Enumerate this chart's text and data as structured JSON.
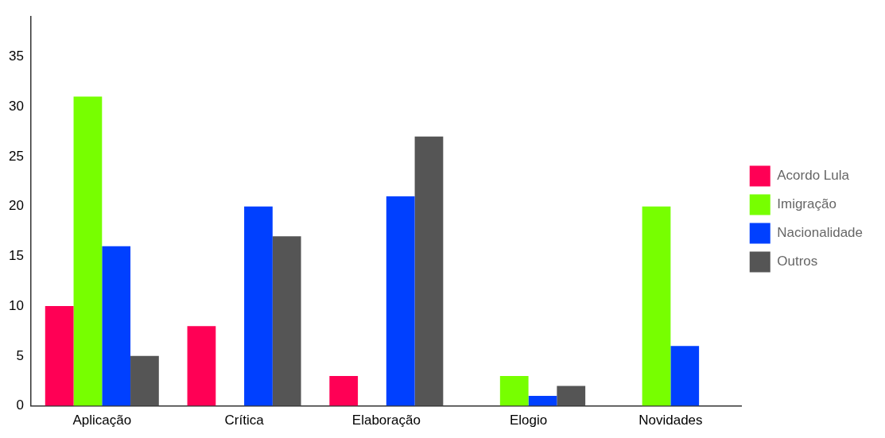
{
  "chart_data": {
    "type": "bar",
    "categories": [
      "Aplicação",
      "Crítica",
      "Elaboração",
      "Elogio",
      "Novidades"
    ],
    "series": [
      {
        "name": "Acordo Lula",
        "color": "#ff0055",
        "values": [
          10,
          8,
          3,
          null,
          null
        ]
      },
      {
        "name": "Imigração",
        "color": "#77ff00",
        "values": [
          31,
          null,
          null,
          3,
          20
        ]
      },
      {
        "name": "Nacionalidade",
        "color": "#0040ff",
        "values": [
          16,
          20,
          21,
          1,
          6
        ]
      },
      {
        "name": "Outros",
        "color": "#555555",
        "values": [
          5,
          17,
          27,
          2,
          null
        ]
      }
    ],
    "ylim": [
      0,
      39
    ],
    "yticks": [
      0,
      5,
      10,
      15,
      20,
      25,
      30,
      35
    ],
    "grid": false,
    "legend": "right"
  }
}
